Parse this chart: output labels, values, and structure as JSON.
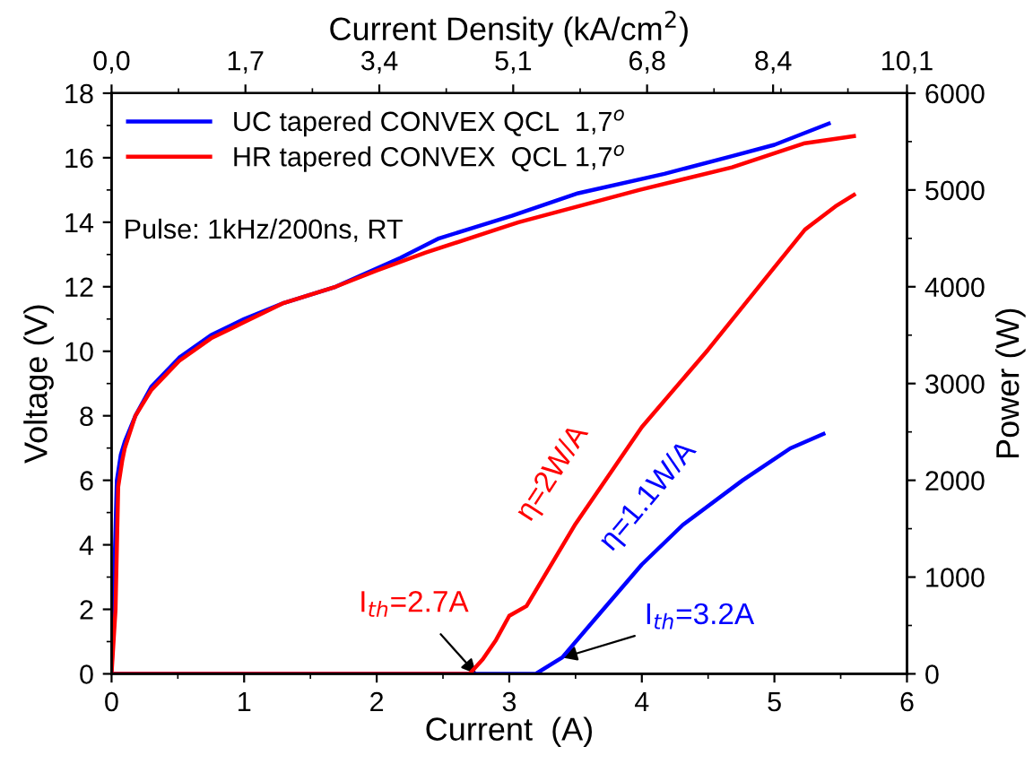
{
  "chart_data": {
    "type": "line",
    "xlabel": "Current  (A)",
    "ylabel": "Voltage (V)",
    "y2label": "Power (W)",
    "x2label": "Current Density (kA/cm$^{2}$)",
    "xlim": [
      0,
      6
    ],
    "xticks": [
      0,
      1,
      2,
      3,
      4,
      5,
      6
    ],
    "ylim": [
      0,
      18
    ],
    "yticks": [
      0,
      2,
      4,
      6,
      8,
      10,
      12,
      14,
      16,
      18
    ],
    "y2lim": [
      0,
      6000
    ],
    "y2ticks": [
      0,
      1000,
      2000,
      3000,
      4000,
      5000,
      6000
    ],
    "x2lim": [
      0,
      10.1
    ],
    "x2ticks": [
      {
        "value": 0,
        "label": "0,0"
      },
      {
        "value": 1.7,
        "label": "1,7"
      },
      {
        "value": 3.4,
        "label": "3,4"
      },
      {
        "value": 5.1,
        "label": "5,1"
      },
      {
        "value": 6.8,
        "label": "6,8"
      },
      {
        "value": 8.4,
        "label": "8,4"
      },
      {
        "value": 10.1,
        "label": "10,1"
      }
    ],
    "grid": false,
    "legend": "top left",
    "line_style": "solid",
    "marker": "none",
    "series": [
      {
        "name": "UC tapered CONVEX QCL  1,7$^{o}$",
        "color": "#0000ff",
        "x": [
          0,
          0.02,
          0.04,
          0.07,
          0.1,
          0.18,
          0.3,
          0.51,
          0.75,
          1.0,
          1.3,
          1.69,
          2.18,
          2.47,
          3.02,
          3.52,
          4.17,
          4.68,
          5.0,
          5.41
        ],
        "values": [
          0,
          3,
          6,
          6.8,
          7.2,
          8,
          8.9,
          9.8,
          10.5,
          11,
          11.5,
          12,
          12.9,
          13.5,
          14.2,
          14.9,
          15.5,
          16.05,
          16.4,
          17.06
        ]
      },
      {
        "name": "HR tapered CONVEX  QCL 1,7$^{o}$",
        "color": "#ff0000",
        "x": [
          0,
          0.03,
          0.05,
          0.08,
          0.1,
          0.18,
          0.3,
          0.51,
          0.75,
          1.0,
          1.3,
          1.69,
          2.0,
          2.37,
          3.07,
          3.98,
          4.68,
          5.23,
          5.6
        ],
        "values": [
          0,
          2,
          5.8,
          6.6,
          7,
          8,
          8.8,
          9.7,
          10.4,
          10.9,
          11.5,
          12,
          12.5,
          13.06,
          14.0,
          15.0,
          15.7,
          16.45,
          16.67
        ]
      },
      {
        "color": "#0000ff",
        "axis": "y2",
        "x": [
          0,
          3.2,
          3.4,
          3.63,
          4.0,
          4.31,
          4.76,
          5.12,
          5.37
        ],
        "values": [
          0,
          0,
          170,
          540,
          1130,
          1540,
          2000,
          2330,
          2480
        ]
      },
      {
        "color": "#ff0000",
        "axis": "y2",
        "x": [
          0,
          2.7,
          2.8,
          2.9,
          3.0,
          3.13,
          3.5,
          4.0,
          4.5,
          5.0,
          5.23,
          5.46,
          5.6
        ],
        "values": [
          0,
          0,
          150,
          350,
          600,
          700,
          1550,
          2550,
          3350,
          4200,
          4590,
          4830,
          4950
        ]
      }
    ],
    "annotations": [
      "Pulse: 1kHz/200ns, RT",
      {
        "text": "I$_{th}$=2.7A",
        "x": 2.75,
        "y": 0
      },
      {
        "text": "I$_{th}$=3.2A",
        "x": 3.4,
        "y": 0.5
      },
      "η=2W/A",
      "η=1.1W/A"
    ]
  }
}
